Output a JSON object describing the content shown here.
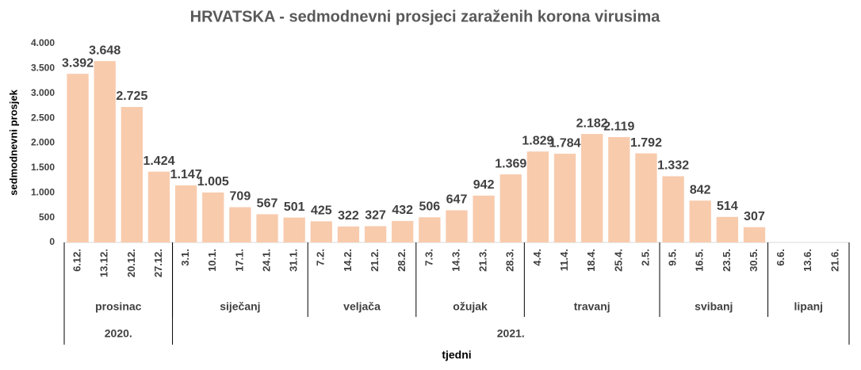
{
  "chart_data": {
    "type": "bar",
    "title": "HRVATSKA - sedmodnevni prosjeci zaraženih korona virusima",
    "y_label": "sedmodnevni prosjek",
    "x_label": "tjedni",
    "categories": [
      "6.12.",
      "13.12.",
      "20.12.",
      "27.12.",
      "3.1.",
      "10.1.",
      "17.1.",
      "24.1.",
      "31.1.",
      "7.2.",
      "14.2.",
      "21.2.",
      "28.2.",
      "7.3.",
      "14.3.",
      "21.3.",
      "28.3.",
      "4.4.",
      "11.4.",
      "18.4.",
      "25.4.",
      "2.5.",
      "9.5.",
      "16.5.",
      "23.5.",
      "30.5.",
      "6.6.",
      "13.6.",
      "21.6."
    ],
    "values": [
      3392,
      3648,
      2725,
      1424,
      1147,
      1005,
      709,
      567,
      501,
      425,
      322,
      327,
      432,
      506,
      647,
      942,
      1369,
      1829,
      1784,
      2182,
      2119,
      1792,
      1332,
      842,
      514,
      307,
      null,
      null,
      null
    ],
    "value_labels": [
      "3.392",
      "3.648",
      "2.725",
      "1.424",
      "1.147",
      "1.005",
      "709",
      "567",
      "501",
      "425",
      "322",
      "327",
      "432",
      "506",
      "647",
      "942",
      "1.369",
      "1.829",
      "1.784",
      "2.182",
      "2.119",
      "1.792",
      "1.332",
      "842",
      "514",
      "307",
      null,
      null,
      null
    ],
    "color": "#f8cbad",
    "ylim": [
      0,
      4000
    ],
    "yticks": [
      0,
      500,
      {
        "value": 1000,
        "label": "1.000"
      },
      {
        "value": 1500,
        "label": "1.500"
      },
      {
        "value": 2000,
        "label": "2.000"
      },
      {
        "value": 2500,
        "label": "2.500"
      },
      {
        "value": 3000,
        "label": "3.000"
      },
      {
        "value": 3500,
        "label": "3.500"
      },
      {
        "value": 4000,
        "label": "4.000"
      }
    ],
    "months": [
      {
        "label": "prosinac",
        "span": 4
      },
      {
        "label": "siječanj",
        "span": 5
      },
      {
        "label": "veljača",
        "span": 4
      },
      {
        "label": "ožujak",
        "span": 4
      },
      {
        "label": "travanj",
        "span": 5
      },
      {
        "label": "svibanj",
        "span": 4
      },
      {
        "label": "lipanj",
        "span": 3
      }
    ],
    "years": [
      {
        "label": "2020.",
        "span": 4
      },
      {
        "label": "2021.",
        "span": 25
      }
    ]
  }
}
